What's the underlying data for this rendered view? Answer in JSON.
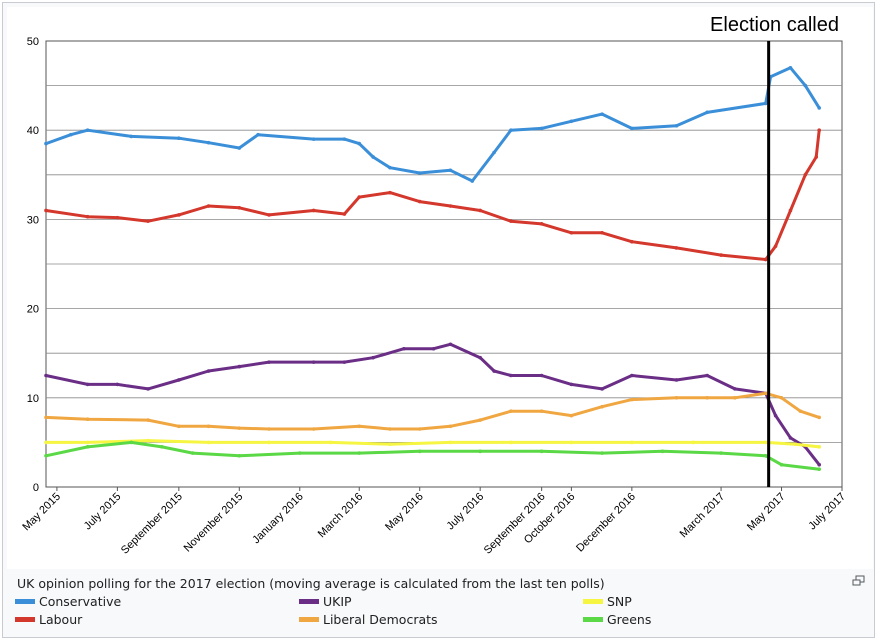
{
  "caption": "UK opinion polling for the 2017 election (moving average is calculated from the last ten polls)",
  "chart_data": {
    "type": "line",
    "title": "",
    "annotation": "Election called",
    "annotation_x": "2017-04-18",
    "xlabel": "",
    "ylabel": "",
    "ylim": [
      0,
      50
    ],
    "yticks": [
      0,
      10,
      20,
      30,
      40,
      50
    ],
    "xlim": [
      "2015-04-20",
      "2017-07-01"
    ],
    "grid": true,
    "xtick_labels": [
      {
        "date": "2015-05-01",
        "label": "May 2015"
      },
      {
        "date": "2015-07-01",
        "label": "July 2015"
      },
      {
        "date": "2015-09-01",
        "label": "September 2015"
      },
      {
        "date": "2015-11-01",
        "label": "November 2015"
      },
      {
        "date": "2016-01-01",
        "label": "January 2016"
      },
      {
        "date": "2016-03-01",
        "label": "March 2016"
      },
      {
        "date": "2016-05-01",
        "label": "May 2016"
      },
      {
        "date": "2016-07-01",
        "label": "July 2016"
      },
      {
        "date": "2016-09-01",
        "label": "September 2016"
      },
      {
        "date": "2016-10-01",
        "label": "October 2016"
      },
      {
        "date": "2016-12-01",
        "label": "December 2016"
      },
      {
        "date": "2017-03-01",
        "label": "March 2017"
      },
      {
        "date": "2017-05-01",
        "label": "May 2017"
      },
      {
        "date": "2017-07-01",
        "label": "July 2017"
      }
    ],
    "series": [
      {
        "name": "Conservative",
        "color": "#3a8fd8",
        "points": [
          [
            "2015-04-20",
            38.5
          ],
          [
            "2015-05-15",
            39.5
          ],
          [
            "2015-06-01",
            40.0
          ],
          [
            "2015-07-15",
            39.3
          ],
          [
            "2015-09-01",
            39.1
          ],
          [
            "2015-10-01",
            38.6
          ],
          [
            "2015-11-01",
            38.0
          ],
          [
            "2015-11-20",
            39.5
          ],
          [
            "2016-01-15",
            39.0
          ],
          [
            "2016-02-15",
            39.0
          ],
          [
            "2016-03-01",
            38.5
          ],
          [
            "2016-03-15",
            37.0
          ],
          [
            "2016-04-01",
            35.8
          ],
          [
            "2016-05-01",
            35.2
          ],
          [
            "2016-06-01",
            35.5
          ],
          [
            "2016-06-23",
            34.3
          ],
          [
            "2016-07-15",
            37.5
          ],
          [
            "2016-08-01",
            40.0
          ],
          [
            "2016-09-01",
            40.2
          ],
          [
            "2016-10-01",
            41.0
          ],
          [
            "2016-11-01",
            41.8
          ],
          [
            "2016-12-01",
            40.2
          ],
          [
            "2017-01-15",
            40.5
          ],
          [
            "2017-02-15",
            42.0
          ],
          [
            "2017-04-15",
            43.0
          ],
          [
            "2017-04-20",
            46.0
          ],
          [
            "2017-05-10",
            47.0
          ],
          [
            "2017-05-25",
            45.0
          ],
          [
            "2017-06-08",
            42.5
          ]
        ]
      },
      {
        "name": "Labour",
        "color": "#d4372c",
        "points": [
          [
            "2015-04-20",
            31.0
          ],
          [
            "2015-06-01",
            30.3
          ],
          [
            "2015-07-01",
            30.2
          ],
          [
            "2015-08-01",
            29.8
          ],
          [
            "2015-09-01",
            30.5
          ],
          [
            "2015-10-01",
            31.5
          ],
          [
            "2015-11-01",
            31.3
          ],
          [
            "2015-12-01",
            30.5
          ],
          [
            "2016-01-15",
            31.0
          ],
          [
            "2016-02-15",
            30.6
          ],
          [
            "2016-03-01",
            32.5
          ],
          [
            "2016-04-01",
            33.0
          ],
          [
            "2016-05-01",
            32.0
          ],
          [
            "2016-06-01",
            31.5
          ],
          [
            "2016-07-01",
            31.0
          ],
          [
            "2016-08-01",
            29.8
          ],
          [
            "2016-09-01",
            29.5
          ],
          [
            "2016-10-01",
            28.5
          ],
          [
            "2016-11-01",
            28.5
          ],
          [
            "2016-12-01",
            27.5
          ],
          [
            "2017-01-15",
            26.8
          ],
          [
            "2017-03-01",
            26.0
          ],
          [
            "2017-04-15",
            25.5
          ],
          [
            "2017-04-25",
            27.0
          ],
          [
            "2017-05-10",
            31.0
          ],
          [
            "2017-05-25",
            35.0
          ],
          [
            "2017-06-05",
            37.0
          ],
          [
            "2017-06-08",
            40.0
          ]
        ]
      },
      {
        "name": "UKIP",
        "color": "#6b2e86",
        "points": [
          [
            "2015-04-20",
            12.5
          ],
          [
            "2015-06-01",
            11.5
          ],
          [
            "2015-07-01",
            11.5
          ],
          [
            "2015-08-01",
            11.0
          ],
          [
            "2015-09-01",
            12.0
          ],
          [
            "2015-10-01",
            13.0
          ],
          [
            "2015-11-01",
            13.5
          ],
          [
            "2015-12-01",
            14.0
          ],
          [
            "2016-01-15",
            14.0
          ],
          [
            "2016-02-15",
            14.0
          ],
          [
            "2016-03-15",
            14.5
          ],
          [
            "2016-04-15",
            15.5
          ],
          [
            "2016-05-15",
            15.5
          ],
          [
            "2016-06-01",
            16.0
          ],
          [
            "2016-07-01",
            14.5
          ],
          [
            "2016-07-15",
            13.0
          ],
          [
            "2016-08-01",
            12.5
          ],
          [
            "2016-09-01",
            12.5
          ],
          [
            "2016-10-01",
            11.5
          ],
          [
            "2016-11-01",
            11.0
          ],
          [
            "2016-12-01",
            12.5
          ],
          [
            "2017-01-15",
            12.0
          ],
          [
            "2017-02-15",
            12.5
          ],
          [
            "2017-03-15",
            11.0
          ],
          [
            "2017-04-15",
            10.5
          ],
          [
            "2017-04-25",
            8.0
          ],
          [
            "2017-05-10",
            5.5
          ],
          [
            "2017-05-25",
            4.5
          ],
          [
            "2017-06-08",
            2.5
          ]
        ]
      },
      {
        "name": "Liberal Democrats",
        "color": "#f0a742",
        "points": [
          [
            "2015-04-20",
            7.8
          ],
          [
            "2015-06-01",
            7.6
          ],
          [
            "2015-08-01",
            7.5
          ],
          [
            "2015-09-01",
            6.8
          ],
          [
            "2015-10-01",
            6.8
          ],
          [
            "2015-11-01",
            6.6
          ],
          [
            "2015-12-01",
            6.5
          ],
          [
            "2016-01-15",
            6.5
          ],
          [
            "2016-03-01",
            6.8
          ],
          [
            "2016-04-01",
            6.5
          ],
          [
            "2016-05-01",
            6.5
          ],
          [
            "2016-06-01",
            6.8
          ],
          [
            "2016-07-01",
            7.5
          ],
          [
            "2016-08-01",
            8.5
          ],
          [
            "2016-09-01",
            8.5
          ],
          [
            "2016-10-01",
            8.0
          ],
          [
            "2016-11-01",
            9.0
          ],
          [
            "2016-12-01",
            9.8
          ],
          [
            "2017-01-15",
            10.0
          ],
          [
            "2017-02-15",
            10.0
          ],
          [
            "2017-03-15",
            10.0
          ],
          [
            "2017-04-15",
            10.5
          ],
          [
            "2017-05-01",
            10.0
          ],
          [
            "2017-05-20",
            8.5
          ],
          [
            "2017-06-08",
            7.8
          ]
        ]
      },
      {
        "name": "SNP",
        "color": "#f5f542",
        "points": [
          [
            "2015-04-20",
            5.0
          ],
          [
            "2015-06-01",
            5.0
          ],
          [
            "2015-08-01",
            5.2
          ],
          [
            "2015-10-01",
            5.0
          ],
          [
            "2015-12-01",
            5.0
          ],
          [
            "2016-02-01",
            5.0
          ],
          [
            "2016-04-01",
            4.8
          ],
          [
            "2016-06-01",
            5.0
          ],
          [
            "2016-08-01",
            5.0
          ],
          [
            "2016-10-01",
            5.0
          ],
          [
            "2016-12-01",
            5.0
          ],
          [
            "2017-02-01",
            5.0
          ],
          [
            "2017-04-15",
            5.0
          ],
          [
            "2017-05-15",
            4.8
          ],
          [
            "2017-06-08",
            4.5
          ]
        ]
      },
      {
        "name": "Greens",
        "color": "#5ad845",
        "points": [
          [
            "2015-04-20",
            3.5
          ],
          [
            "2015-06-01",
            4.5
          ],
          [
            "2015-07-15",
            5.0
          ],
          [
            "2015-08-15",
            4.5
          ],
          [
            "2015-09-15",
            3.8
          ],
          [
            "2015-11-01",
            3.5
          ],
          [
            "2016-01-01",
            3.8
          ],
          [
            "2016-03-01",
            3.8
          ],
          [
            "2016-05-01",
            4.0
          ],
          [
            "2016-07-01",
            4.0
          ],
          [
            "2016-09-01",
            4.0
          ],
          [
            "2016-11-01",
            3.8
          ],
          [
            "2017-01-01",
            4.0
          ],
          [
            "2017-03-01",
            3.8
          ],
          [
            "2017-04-15",
            3.5
          ],
          [
            "2017-05-01",
            2.5
          ],
          [
            "2017-06-08",
            2.0
          ]
        ]
      }
    ]
  },
  "legend": [
    {
      "label": "Conservative",
      "color": "#3a8fd8"
    },
    {
      "label": "UKIP",
      "color": "#6b2e86"
    },
    {
      "label": "SNP",
      "color": "#f5f542"
    },
    {
      "label": "Labour",
      "color": "#d4372c"
    },
    {
      "label": "Liberal Democrats",
      "color": "#f0a742"
    },
    {
      "label": "Greens",
      "color": "#5ad845"
    }
  ]
}
